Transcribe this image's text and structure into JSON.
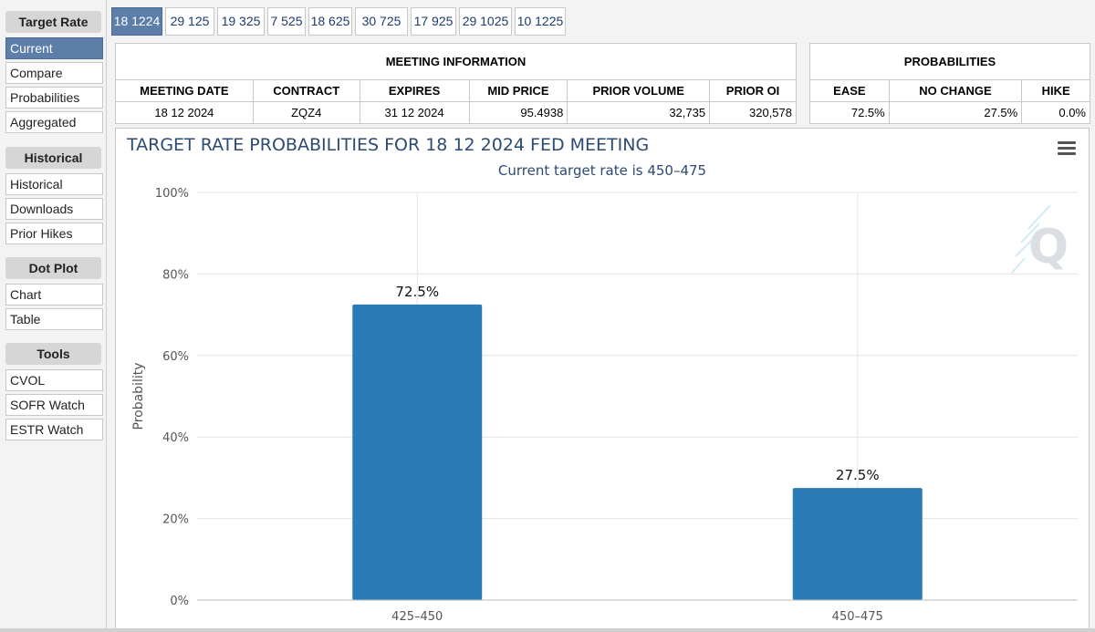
{
  "sidebar": {
    "sections": [
      {
        "heading": "Target Rate",
        "items": [
          "Current",
          "Compare",
          "Probabilities",
          "Aggregated"
        ]
      },
      {
        "heading": "Historical",
        "items": [
          "Historical",
          "Downloads",
          "Prior Hikes"
        ]
      },
      {
        "heading": "Dot Plot",
        "items": [
          "Chart",
          "Table"
        ]
      },
      {
        "heading": "Tools",
        "items": [
          "CVOL",
          "SOFR Watch",
          "ESTR Watch"
        ]
      }
    ],
    "active_item": "Current"
  },
  "meeting_tabs": [
    "18 1224",
    "29 125",
    "19 325",
    "7 525",
    "18 625",
    "30 725",
    "17 925",
    "29 1025",
    "10 1225"
  ],
  "meeting_info": {
    "title": "MEETING INFORMATION",
    "headers": [
      "MEETING DATE",
      "CONTRACT",
      "EXPIRES",
      "MID PRICE",
      "PRIOR VOLUME",
      "PRIOR OI"
    ],
    "values": [
      "18 12 2024",
      "ZQZ4",
      "31 12 2024",
      "95.4938",
      "32,735",
      "320,578"
    ]
  },
  "probabilities": {
    "title": "PROBABILITIES",
    "headers": [
      "EASE",
      "NO CHANGE",
      "HIKE"
    ],
    "values": [
      "72.5%",
      "27.5%",
      "0.0%"
    ]
  },
  "colors": {
    "accent": "#5d7ea8",
    "bar": "#2b7bb9",
    "title": "#2c4a72"
  },
  "chart_data": {
    "type": "bar",
    "title": "TARGET RATE PROBABILITIES FOR 18 12 2024 FED MEETING",
    "subtitle": "Current target rate is 450–475",
    "ylabel": "Probability",
    "xlabel": "",
    "categories": [
      "425–450",
      "450–475"
    ],
    "values": [
      72.5,
      27.5
    ],
    "data_labels": [
      "72.5%",
      "27.5%"
    ],
    "ylim": [
      0,
      100
    ],
    "yticks": [
      "0%",
      "20%",
      "40%",
      "60%",
      "80%",
      "100%"
    ],
    "grid": true
  }
}
